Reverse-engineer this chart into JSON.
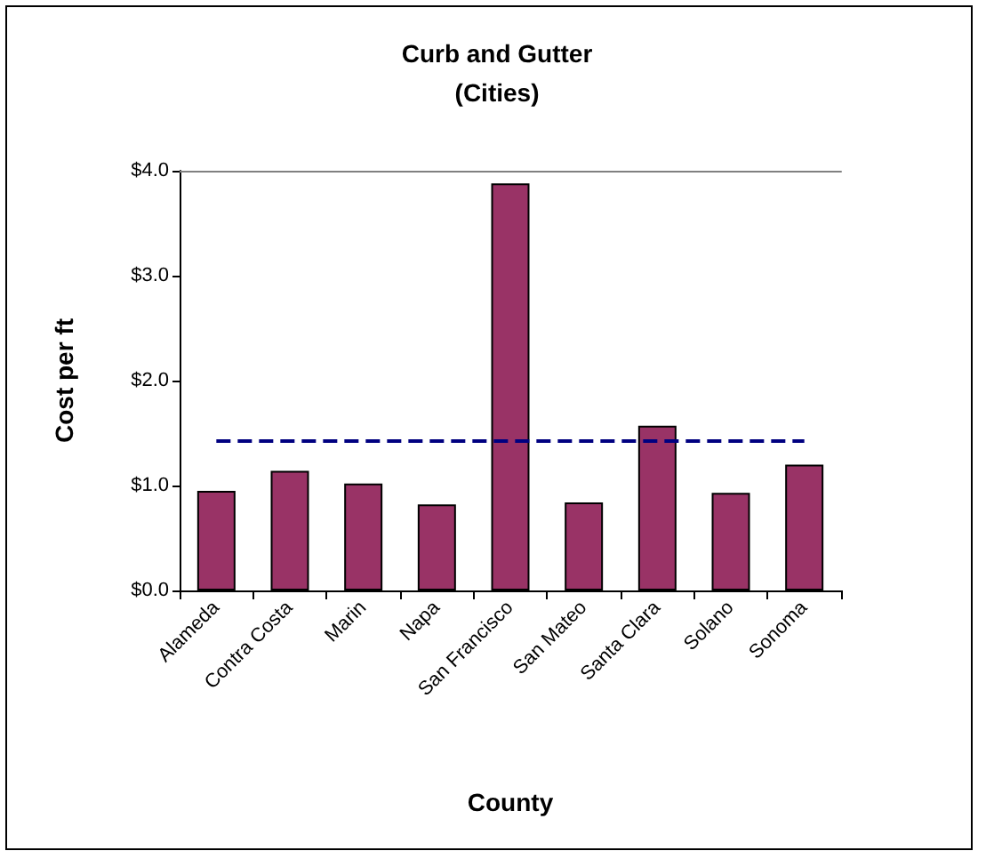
{
  "chart_data": {
    "type": "bar",
    "title": "Curb and Gutter",
    "subtitle": "(Cities)",
    "xlabel": "County",
    "ylabel": "Cost per ft",
    "categories": [
      "Alameda",
      "Contra Costa",
      "Marin",
      "Napa",
      "San Francisco",
      "San Mateo",
      "Santa Clara",
      "Solano",
      "Sonoma"
    ],
    "series": [
      {
        "color": "#993366",
        "values": [
          0.95,
          1.14,
          1.02,
          0.82,
          3.88,
          0.84,
          1.57,
          0.93,
          1.2
        ]
      }
    ],
    "ylim": [
      0,
      4
    ],
    "yticks": [
      {
        "value": 0,
        "label": "$0.0"
      },
      {
        "value": 1,
        "label": "$1.0"
      },
      {
        "value": 2,
        "label": "$2.0"
      },
      {
        "value": 3,
        "label": "$3.0"
      },
      {
        "value": 4,
        "label": "$4.0"
      }
    ],
    "ref_lines": [
      {
        "axis": "y",
        "value": 1.43,
        "color": "#000080",
        "line_style": "dashed"
      }
    ],
    "grid": false
  }
}
